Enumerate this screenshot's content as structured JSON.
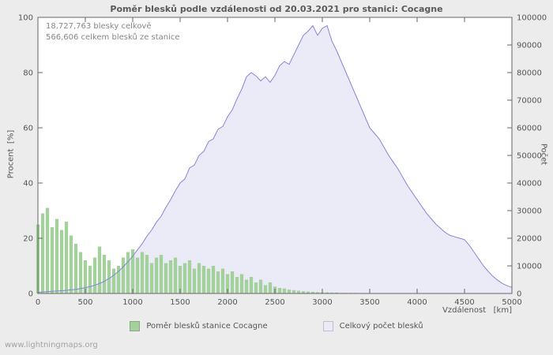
{
  "page": {
    "watermark": "www.lightningmaps.org",
    "background_color": "#ececec",
    "plot_background_color": "#ffffff"
  },
  "annotations": {
    "line1": "18,727,763 blesky celkově",
    "line2": "566,606 celkem blesků ze stanice"
  },
  "chart_data": {
    "type": "area",
    "title": "Poměr blesků podle vzdálenosti od 20.03.2021 pro stanici: Cocagne",
    "xlabel": "Vzdálenost   [km]",
    "ylabel_left": "Procent  [%]",
    "ylabel_right": "Počet",
    "xlim": [
      0,
      5000
    ],
    "ylim_left": [
      0,
      100
    ],
    "ylim_right": [
      0,
      100000
    ],
    "x_ticks": [
      0,
      500,
      1000,
      1500,
      2000,
      2500,
      3000,
      3500,
      4000,
      4500,
      5000
    ],
    "y_ticks_left": [
      0,
      20,
      40,
      60,
      80,
      100
    ],
    "y_ticks_right": [
      0,
      10000,
      20000,
      30000,
      40000,
      50000,
      60000,
      70000,
      80000,
      90000,
      100000
    ],
    "x_step": 50,
    "grid": false,
    "legend_position": "bottom",
    "series": [
      {
        "name": "Poměr blesků stanice Cocagne",
        "axis": "left",
        "render": "bars",
        "color": "#a3d09b",
        "values": [
          25,
          29,
          31,
          24,
          27,
          23,
          26,
          21,
          18,
          15,
          12,
          10,
          13,
          17,
          14,
          12,
          9,
          10,
          13,
          15,
          16,
          13,
          15,
          14,
          11,
          13,
          14,
          11,
          12,
          13,
          10,
          11,
          12,
          9,
          11,
          10,
          9,
          10,
          8,
          9,
          7,
          8,
          6,
          7,
          5,
          6,
          4,
          5,
          3,
          4,
          2.5,
          2,
          1.8,
          1.4,
          1.2,
          1,
          0.8,
          0.7,
          0.6,
          0.5,
          0.4,
          0.4,
          0.3,
          0.3,
          0.2,
          0.2,
          0.2,
          0.2,
          0.1,
          0.1,
          0.1,
          0.1,
          0.1,
          0.1,
          0.1,
          0.1,
          0,
          0,
          0,
          0,
          0,
          0,
          0,
          0,
          0,
          0,
          0,
          0,
          0,
          0,
          0,
          0,
          0,
          0,
          0,
          0,
          0,
          0,
          0,
          0,
          0
        ]
      },
      {
        "name": "Celkový počet blesků",
        "axis": "right",
        "render": "area-line",
        "line_color": "#8484d8",
        "fill_color": "#ebebf8",
        "values": [
          400,
          550,
          700,
          800,
          900,
          1000,
          1150,
          1300,
          1500,
          1800,
          2100,
          2500,
          3000,
          3600,
          4400,
          5400,
          6600,
          8000,
          9700,
          11500,
          13500,
          15800,
          18000,
          20800,
          23000,
          25800,
          28000,
          31200,
          34000,
          37200,
          40000,
          41500,
          45500,
          46500,
          50000,
          51500,
          55000,
          56000,
          59500,
          60500,
          64000,
          66500,
          70500,
          74000,
          78500,
          80000,
          78800,
          77000,
          78500,
          76500,
          79000,
          82500,
          84000,
          83000,
          86500,
          90000,
          93500,
          95000,
          97000,
          93500,
          96000,
          97000,
          91500,
          88000,
          84000,
          80000,
          76000,
          72000,
          68000,
          64000,
          60000,
          58000,
          56000,
          53000,
          50000,
          47500,
          45000,
          42000,
          39000,
          36500,
          34000,
          31500,
          29000,
          27000,
          25000,
          23500,
          22000,
          21000,
          20500,
          20000,
          19500,
          17500,
          15000,
          12500,
          10000,
          8000,
          6200,
          4800,
          3600,
          2800,
          2200
        ]
      }
    ]
  }
}
